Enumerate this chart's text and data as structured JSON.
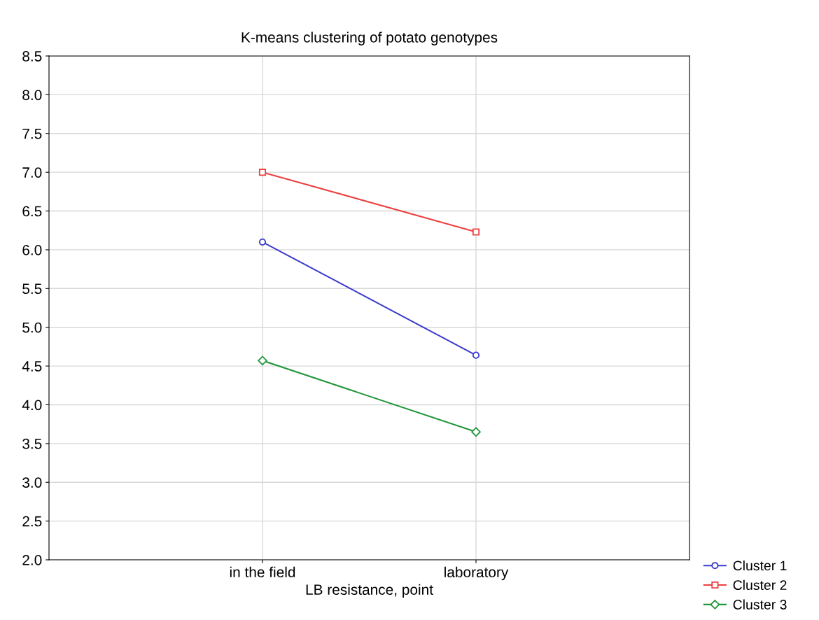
{
  "chart_data": {
    "type": "line",
    "title": "K-means clustering of potato genotypes",
    "xlabel": "LB resistance, point",
    "categories": [
      "in the field",
      "laboratory"
    ],
    "series": [
      {
        "name": "Cluster 1",
        "color": "#3a3acc",
        "marker": "circle",
        "values": [
          6.1,
          4.64
        ]
      },
      {
        "name": "Cluster 2",
        "color": "#ee4040",
        "marker": "square",
        "values": [
          7.0,
          6.23
        ]
      },
      {
        "name": "Cluster 3",
        "color": "#22963a",
        "marker": "diamond",
        "values": [
          4.57,
          3.65
        ]
      }
    ],
    "ylim": [
      2.0,
      8.5
    ],
    "yticks": [
      {
        "value": 2.0,
        "label": "2.0"
      },
      {
        "value": 2.5,
        "label": "2.5"
      },
      {
        "value": 3.0,
        "label": "3.0"
      },
      {
        "value": 3.5,
        "label": "3.5"
      },
      {
        "value": 4.0,
        "label": "4.0"
      },
      {
        "value": 4.5,
        "label": "4.5"
      },
      {
        "value": 5.0,
        "label": "5.0"
      },
      {
        "value": 5.5,
        "label": "5.5"
      },
      {
        "value": 6.0,
        "label": "6.0"
      },
      {
        "value": 6.5,
        "label": "6.5"
      },
      {
        "value": 7.0,
        "label": "7.0"
      },
      {
        "value": 7.5,
        "label": "7.5"
      },
      {
        "value": 8.0,
        "label": "8.0"
      },
      {
        "value": 8.5,
        "label": "8.5"
      }
    ],
    "grid": true,
    "legend": "bottom right",
    "line_style": "solid"
  }
}
